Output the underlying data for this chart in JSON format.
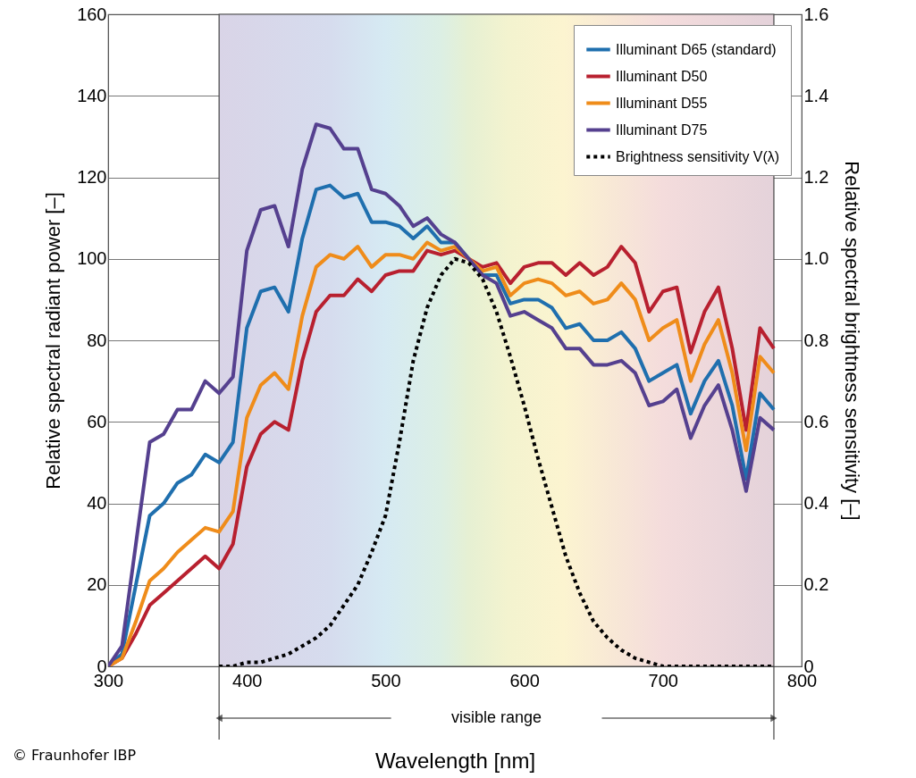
{
  "chart_data": {
    "type": "line",
    "xlabel": "Wavelength [nm]",
    "ylabel": "Relative spectral radiant power [–]",
    "y2label": "Relative spectral brightness sensitivity [–]",
    "x": [
      300,
      310,
      320,
      330,
      340,
      350,
      360,
      370,
      380,
      390,
      400,
      410,
      420,
      430,
      440,
      450,
      460,
      470,
      480,
      490,
      500,
      510,
      520,
      530,
      540,
      550,
      560,
      570,
      580,
      590,
      600,
      610,
      620,
      630,
      640,
      650,
      660,
      670,
      680,
      690,
      700,
      710,
      720,
      730,
      740,
      750,
      760,
      770,
      780
    ],
    "series": [
      {
        "name": "Illuminant D65 (standard)",
        "color": "#1f6fae",
        "line_style": "solid",
        "values": [
          0,
          3,
          20,
          37,
          40,
          45,
          47,
          52,
          50,
          55,
          83,
          92,
          93,
          87,
          105,
          117,
          118,
          115,
          116,
          109,
          109,
          108,
          105,
          108,
          104,
          104,
          100,
          96,
          96,
          89,
          90,
          90,
          88,
          83,
          84,
          80,
          80,
          82,
          78,
          70,
          72,
          74,
          62,
          70,
          75,
          64,
          46,
          67,
          63
        ]
      },
      {
        "name": "Illuminant D50",
        "color": "#b8202f",
        "line_style": "solid",
        "values": [
          0,
          2,
          8,
          15,
          18,
          21,
          24,
          27,
          24,
          30,
          49,
          57,
          60,
          58,
          75,
          87,
          91,
          91,
          95,
          92,
          96,
          97,
          97,
          102,
          101,
          102,
          100,
          98,
          99,
          94,
          98,
          99,
          99,
          96,
          99,
          96,
          98,
          103,
          99,
          87,
          92,
          93,
          77,
          87,
          93,
          78,
          58,
          83,
          78
        ]
      },
      {
        "name": "Illuminant D55",
        "color": "#ef8c1a",
        "line_style": "solid",
        "values": [
          0,
          2,
          11,
          21,
          24,
          28,
          31,
          34,
          33,
          38,
          61,
          69,
          72,
          68,
          86,
          98,
          101,
          100,
          103,
          98,
          101,
          101,
          100,
          104,
          102,
          103,
          100,
          97,
          98,
          91,
          94,
          95,
          94,
          91,
          92,
          89,
          90,
          94,
          90,
          80,
          83,
          85,
          70,
          79,
          85,
          72,
          53,
          76,
          72
        ]
      },
      {
        "name": "Illuminant D75",
        "color": "#55408f",
        "line_style": "solid",
        "values": [
          0,
          5,
          30,
          55,
          57,
          63,
          63,
          70,
          67,
          71,
          102,
          112,
          113,
          103,
          122,
          133,
          132,
          127,
          127,
          117,
          116,
          113,
          108,
          110,
          106,
          104,
          100,
          96,
          94,
          86,
          87,
          85,
          83,
          78,
          78,
          74,
          74,
          75,
          72,
          64,
          65,
          68,
          56,
          64,
          69,
          58,
          43,
          61,
          58
        ]
      },
      {
        "name": "Brightness sensitivity V(λ)",
        "color": "#000000",
        "line_style": "dotted",
        "axis": "y2",
        "x": [
          380,
          390,
          400,
          410,
          420,
          430,
          440,
          450,
          460,
          470,
          480,
          490,
          500,
          510,
          520,
          530,
          540,
          550,
          560,
          570,
          580,
          590,
          600,
          610,
          620,
          630,
          640,
          650,
          660,
          670,
          680,
          690,
          700,
          710,
          720,
          730,
          740,
          750,
          760,
          770,
          780
        ],
        "values": [
          0,
          0,
          0.01,
          0.01,
          0.02,
          0.03,
          0.05,
          0.07,
          0.1,
          0.15,
          0.2,
          0.28,
          0.37,
          0.55,
          0.75,
          0.88,
          0.96,
          1.0,
          0.99,
          0.95,
          0.87,
          0.76,
          0.64,
          0.51,
          0.39,
          0.27,
          0.18,
          0.11,
          0.07,
          0.04,
          0.02,
          0.01,
          0,
          0,
          0,
          0,
          0,
          0,
          0,
          0,
          0
        ]
      }
    ],
    "xlim": [
      300,
      800
    ],
    "xticks": [
      300,
      400,
      500,
      600,
      700,
      800
    ],
    "ylim": [
      0,
      160
    ],
    "yticks": [
      0,
      20,
      40,
      60,
      80,
      100,
      120,
      140,
      160
    ],
    "y2lim": [
      0,
      1.6
    ],
    "y2ticks": [
      0,
      0.2,
      0.4,
      0.6,
      0.8,
      {
        "value": 1,
        "label": "1.0"
      },
      1.2,
      1.4,
      1.6
    ],
    "bands": [
      {
        "axis": "x",
        "from": 380,
        "to": 780,
        "label": "visible range"
      }
    ],
    "annotations": [
      "© Fraunhofer IBP"
    ],
    "grid": true,
    "legend": "top right",
    "marker": "none"
  }
}
